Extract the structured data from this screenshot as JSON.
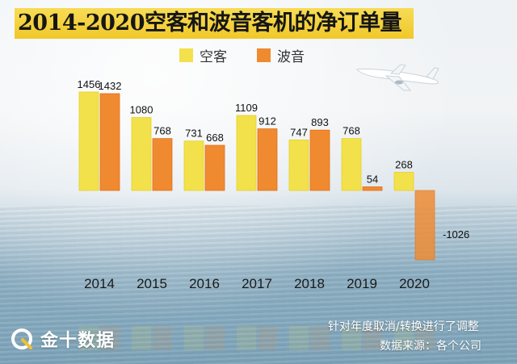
{
  "title": "2014-2020空客和波音客机的净订单量",
  "legend": [
    {
      "name": "空客",
      "color": "#f2e14a"
    },
    {
      "name": "波音",
      "color": "#f08a30"
    }
  ],
  "footer": {
    "note": "针对年度取消/转换进行了调整",
    "source": "数据来源：各个公司"
  },
  "logo": {
    "text": "金十数据",
    "icon": "jin10-logo-icon"
  },
  "decor": {
    "plane_icon": "airplane-icon"
  },
  "chart_data": {
    "type": "bar",
    "title": "2014-2020空客和波音客机的净订单量",
    "categories": [
      "2014",
      "2015",
      "2016",
      "2017",
      "2018",
      "2019",
      "2020"
    ],
    "series": [
      {
        "name": "空客",
        "color": "#f2e14a",
        "values": [
          1456,
          1080,
          731,
          1109,
          747,
          768,
          268
        ]
      },
      {
        "name": "波音",
        "color": "#f08a30",
        "values": [
          1432,
          768,
          668,
          912,
          893,
          54,
          -1026
        ]
      }
    ],
    "data_labels": true,
    "legend_position": "top",
    "grid": false
  }
}
